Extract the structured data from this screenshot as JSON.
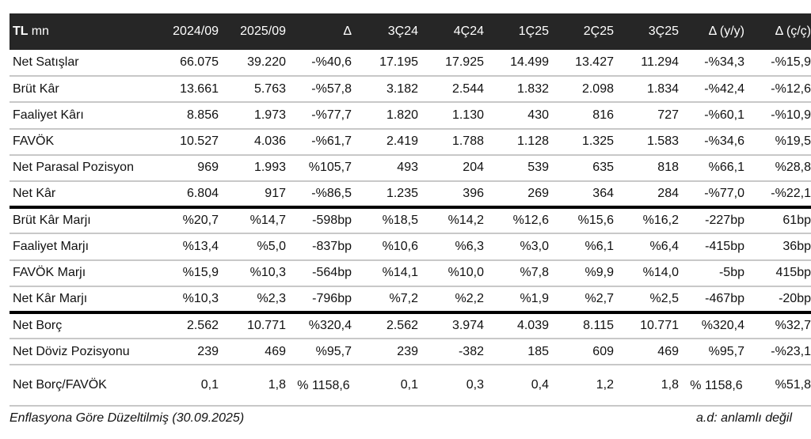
{
  "header": {
    "label_bold": "TL",
    "label_unit": "mn",
    "columns": [
      "2024/09",
      "2025/09",
      "Δ",
      "3Ç24",
      "4Ç24",
      "1Ç25",
      "2Ç25",
      "3Ç25",
      "Δ (y/y)",
      "Δ (ç/ç)"
    ]
  },
  "rows": [
    {
      "label": "Net Satışlar",
      "values": [
        "66.075",
        "39.220",
        "-%40,6",
        "17.195",
        "17.925",
        "14.499",
        "13.427",
        "11.294",
        "-%34,3",
        "-%15,9"
      ]
    },
    {
      "label": "Brüt Kâr",
      "values": [
        "13.661",
        "5.763",
        "-%57,8",
        "3.182",
        "2.544",
        "1.832",
        "2.098",
        "1.834",
        "-%42,4",
        "-%12,6"
      ]
    },
    {
      "label": "Faaliyet Kârı",
      "values": [
        "8.856",
        "1.973",
        "-%77,7",
        "1.820",
        "1.130",
        "430",
        "816",
        "727",
        "-%60,1",
        "-%10,9"
      ]
    },
    {
      "label": "FAVÖK",
      "values": [
        "10.527",
        "4.036",
        "-%61,7",
        "2.419",
        "1.788",
        "1.128",
        "1.325",
        "1.583",
        "-%34,6",
        "%19,5"
      ]
    },
    {
      "label": "Net Parasal Pozisyon",
      "values": [
        "969",
        "1.993",
        "%105,7",
        "493",
        "204",
        "539",
        "635",
        "818",
        "%66,1",
        "%28,8"
      ]
    },
    {
      "label": "Net Kâr",
      "values": [
        "6.804",
        "917",
        "-%86,5",
        "1.235",
        "396",
        "269",
        "364",
        "284",
        "-%77,0",
        "-%22,1"
      ]
    },
    {
      "label": "Brüt Kâr Marjı",
      "values": [
        "%20,7",
        "%14,7",
        "-598bp",
        "%18,5",
        "%14,2",
        "%12,6",
        "%15,6",
        "%16,2",
        "-227bp",
        "61bp"
      ]
    },
    {
      "label": "Faaliyet Marjı",
      "values": [
        "%13,4",
        "%5,0",
        "-837bp",
        "%10,6",
        "%6,3",
        "%3,0",
        "%6,1",
        "%6,4",
        "-415bp",
        "36bp"
      ]
    },
    {
      "label": "FAVÖK Marjı",
      "values": [
        "%15,9",
        "%10,3",
        "-564bp",
        "%14,1",
        "%10,0",
        "%7,8",
        "%9,9",
        "%14,0",
        "-5bp",
        "415bp"
      ]
    },
    {
      "label": "Net Kâr Marjı",
      "values": [
        "%10,3",
        "%2,3",
        "-796bp",
        "%7,2",
        "%2,2",
        "%1,9",
        "%2,7",
        "%2,5",
        "-467bp",
        "-20bp"
      ]
    },
    {
      "label": "Net Borç",
      "values": [
        "2.562",
        "10.771",
        "%320,4",
        "2.562",
        "3.974",
        "4.039",
        "8.115",
        "10.771",
        "%320,4",
        "%32,7"
      ]
    },
    {
      "label": "Net Döviz Pozisyonu",
      "values": [
        "239",
        "469",
        "%95,7",
        "239",
        "-382",
        "185",
        "609",
        "469",
        "%95,7",
        "-%23,1"
      ]
    },
    {
      "label": "Net Borç/FAVÖK",
      "values": [
        "0,1",
        "1,8",
        "% 1158,6",
        "0,1",
        "0,3",
        "0,4",
        "1,2",
        "1,8",
        "% 1158,6",
        "%51,8"
      ]
    }
  ],
  "footer": {
    "left": "Enflasyona Göre Düzeltilmiş (30.09.2025)",
    "right": "a.d: anlamlı değil"
  }
}
